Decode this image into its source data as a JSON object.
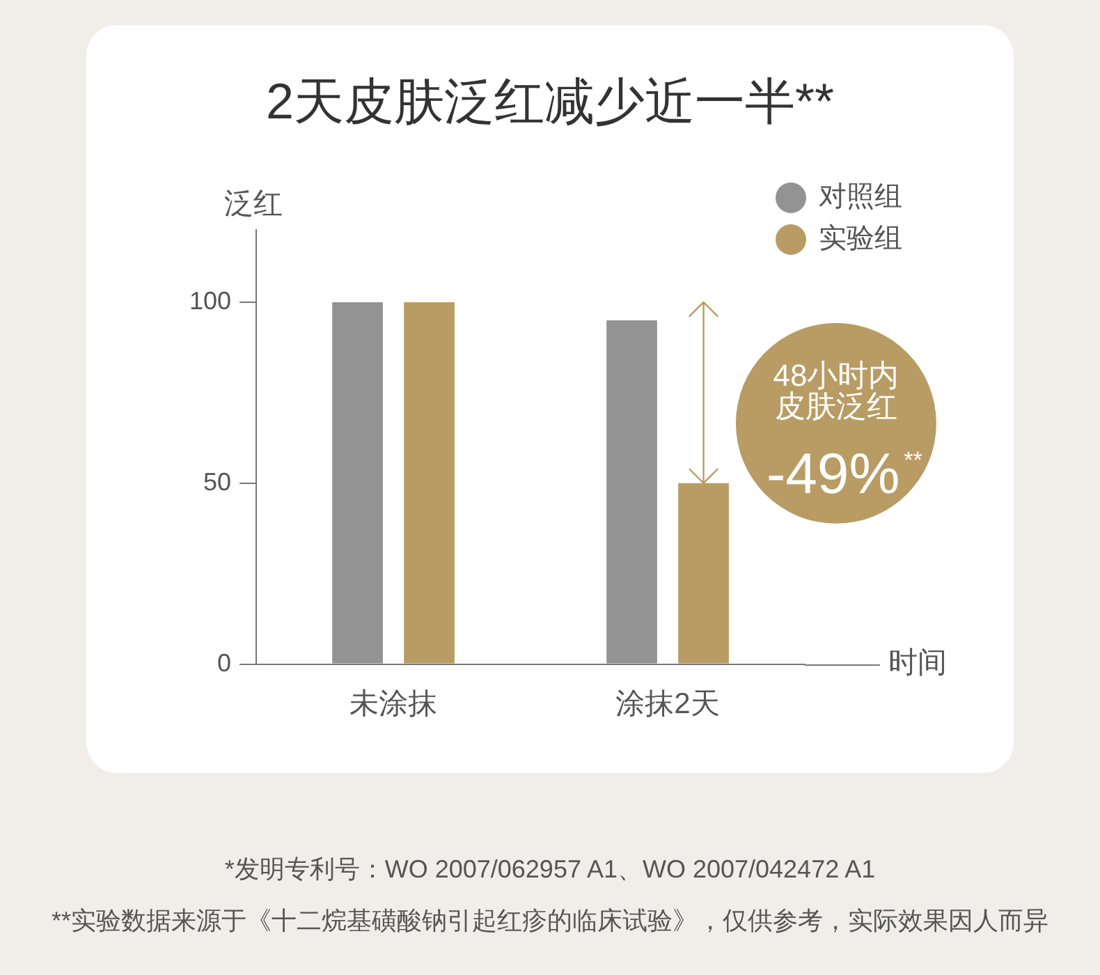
{
  "chart_data": {
    "type": "bar",
    "title": "2天皮肤泛红减少近一半**",
    "xlabel": "时间",
    "ylabel": "泛红",
    "categories": [
      "未涂抹",
      "涂抹2天"
    ],
    "series": [
      {
        "name": "对照组",
        "color": "#939393",
        "values": [
          100,
          95
        ]
      },
      {
        "name": "实验组",
        "color": "#b89c64",
        "values": [
          100,
          50
        ]
      }
    ],
    "ylim": [
      0,
      120
    ],
    "yticks": [
      0,
      50,
      100
    ],
    "grid": false,
    "legend": "top right",
    "annotations": [
      "48小时内皮肤泛红",
      "-49%$^{**}$",
      "*发明专利号：WO 2007/062957 A1、WO 2007/042472 A1",
      "**实验数据来源于《十二烷基磺酸钠引起红疹的临床试验》，仅供参考，实际效果因人而异"
    ]
  }
}
